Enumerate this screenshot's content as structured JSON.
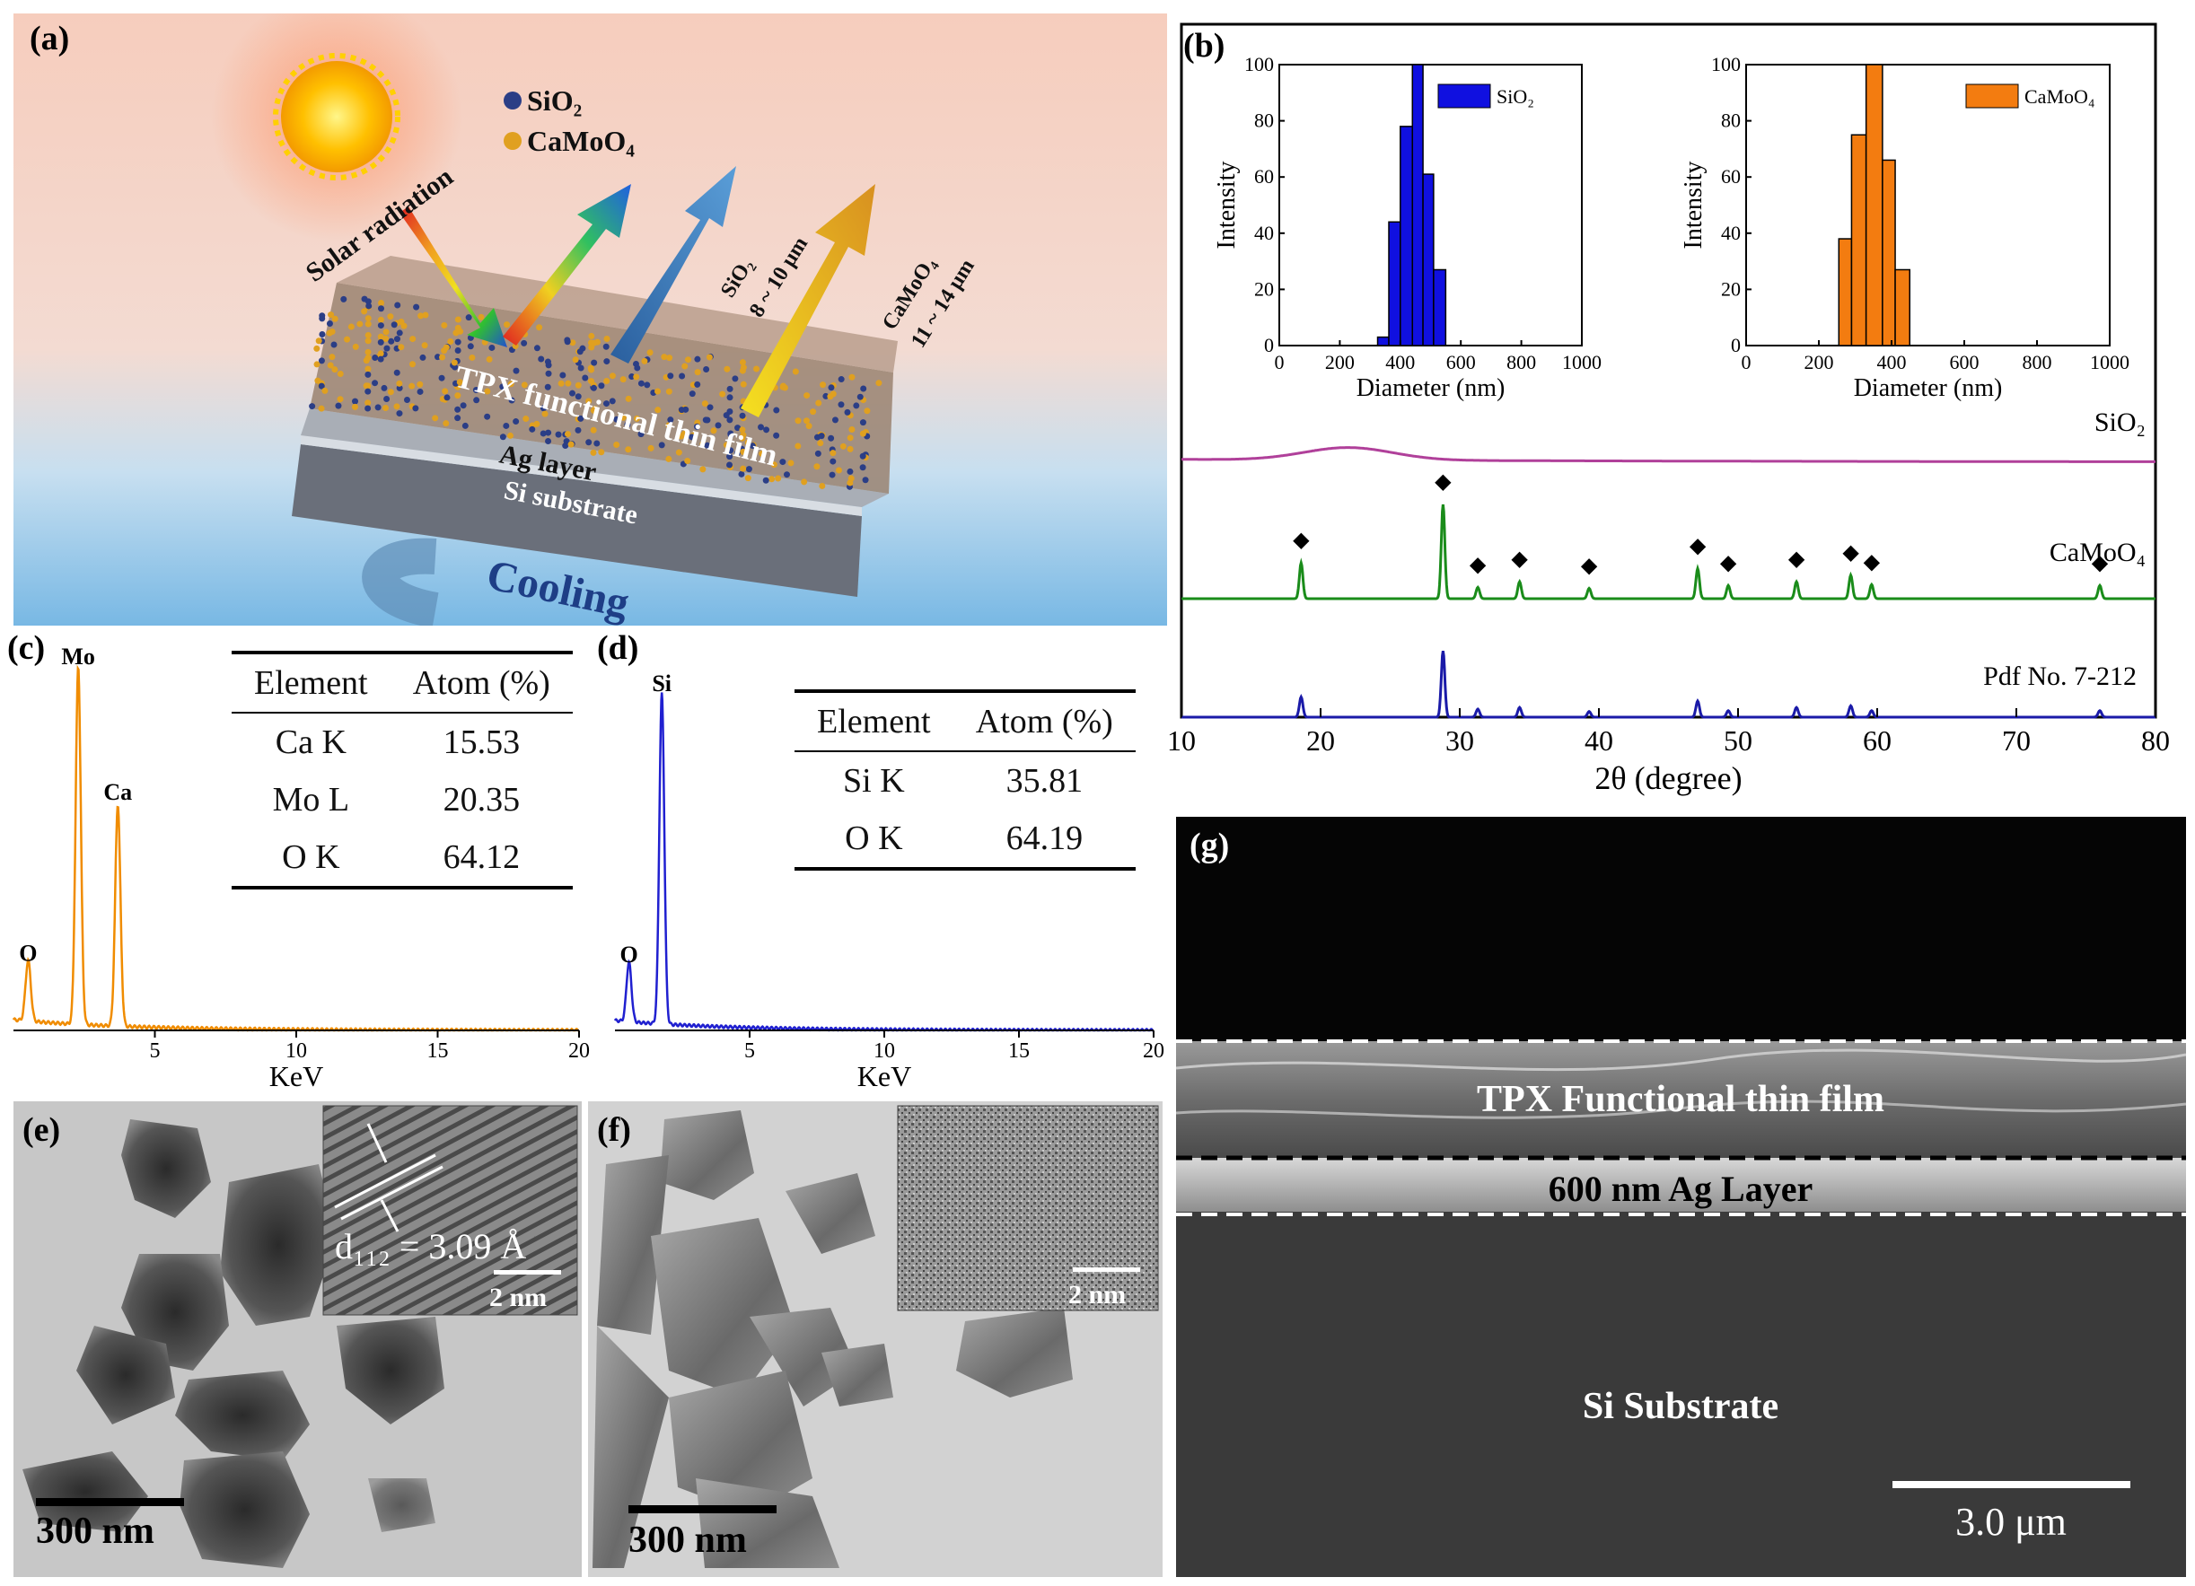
{
  "panels": {
    "a": {
      "label": "(a)",
      "legend": [
        {
          "name": "SiO₂",
          "color": "#2b3e86"
        },
        {
          "name": "CaMoO₄",
          "color": "#e0a020"
        }
      ],
      "solar_label": "Solar radiation",
      "sio2_emission": "SiO₂",
      "sio2_range": "8 ~ 10 μm",
      "camoo4_emission": "CaMoO₄",
      "camoo4_range": "11 ~ 14 μm",
      "film_label": "TPX functional thin film",
      "ag_label": "Ag layer",
      "si_label": "Si substrate",
      "cooling_label": "Cooling"
    },
    "b": {
      "label": "(b)"
    },
    "c": {
      "label": "(c)",
      "peaks": [
        "Mo",
        "Ca",
        "O"
      ],
      "table": {
        "headers": [
          "Element",
          "Atom (%)"
        ],
        "rows": [
          [
            "Ca K",
            "15.53"
          ],
          [
            "Mo L",
            "20.35"
          ],
          [
            "O K",
            "64.12"
          ]
        ]
      }
    },
    "d": {
      "label": "(d)",
      "peaks": [
        "Si",
        "O"
      ],
      "table": {
        "headers": [
          "Element",
          "Atom (%)"
        ],
        "rows": [
          [
            "Si K",
            "35.81"
          ],
          [
            "O K",
            "64.19"
          ]
        ]
      }
    },
    "e": {
      "label": "(e)",
      "scale_bar": "300 nm",
      "inset_scale": "2 nm",
      "lattice": "d₁₁₂ = 3.09 Å"
    },
    "f": {
      "label": "(f)",
      "scale_bar": "300 nm",
      "inset_scale": "2 nm"
    },
    "g": {
      "label": "(g)",
      "film": "TPX Functional thin film",
      "ag": "600 nm Ag Layer",
      "si": "Si Substrate",
      "scale_bar": "3.0 μm"
    }
  },
  "chart_data": [
    {
      "id": "b-inset-sio2",
      "type": "bar",
      "title": "",
      "legend": "SiO₂",
      "color": "#1010e0",
      "xlabel": "Diameter (nm)",
      "ylabel": "Intensity",
      "xlim": [
        0,
        1000
      ],
      "ylim": [
        0,
        100
      ],
      "xticks": [
        "0",
        "200",
        "400",
        "600",
        "800",
        "1000"
      ],
      "yticks": [
        "0",
        "20",
        "40",
        "60",
        "80",
        "100"
      ],
      "bins": [
        {
          "x0": 325,
          "x1": 362,
          "y": 3
        },
        {
          "x0": 362,
          "x1": 400,
          "y": 44
        },
        {
          "x0": 400,
          "x1": 440,
          "y": 78
        },
        {
          "x0": 440,
          "x1": 475,
          "y": 100
        },
        {
          "x0": 475,
          "x1": 510,
          "y": 61
        },
        {
          "x0": 510,
          "x1": 550,
          "y": 27
        }
      ]
    },
    {
      "id": "b-inset-camoo4",
      "type": "bar",
      "title": "",
      "legend": "CaMoO₄",
      "color": "#f37c10",
      "xlabel": "Diameter (nm)",
      "ylabel": "Intensity",
      "xlim": [
        0,
        1000
      ],
      "ylim": [
        0,
        100
      ],
      "xticks": [
        "0",
        "200",
        "400",
        "600",
        "800",
        "1000"
      ],
      "yticks": [
        "0",
        "20",
        "40",
        "60",
        "80",
        "100"
      ],
      "bins": [
        {
          "x0": 255,
          "x1": 290,
          "y": 38
        },
        {
          "x0": 290,
          "x1": 330,
          "y": 75
        },
        {
          "x0": 330,
          "x1": 375,
          "y": 100
        },
        {
          "x0": 375,
          "x1": 410,
          "y": 66
        },
        {
          "x0": 410,
          "x1": 450,
          "y": 27
        }
      ]
    },
    {
      "id": "b-xrd",
      "type": "line",
      "xlabel": "2θ (degree)",
      "ylabel": "",
      "xlim": [
        10,
        80
      ],
      "xticks": [
        "10",
        "20",
        "30",
        "40",
        "50",
        "60",
        "70",
        "80"
      ],
      "series": [
        {
          "name": "SiO₂",
          "color": "#b0409a",
          "kind": "amorphous",
          "hump_center": 22,
          "hump_width": 4.5,
          "relative_height": 0.35
        },
        {
          "name": "CaMoO₄",
          "color": "#1a8c1a",
          "peaks": [
            [
              18.6,
              0.38
            ],
            [
              28.8,
              1.0
            ],
            [
              31.3,
              0.12
            ],
            [
              34.3,
              0.18
            ],
            [
              39.3,
              0.11
            ],
            [
              47.1,
              0.32
            ],
            [
              49.3,
              0.14
            ],
            [
              54.2,
              0.18
            ],
            [
              58.1,
              0.25
            ],
            [
              59.6,
              0.15
            ],
            [
              76.0,
              0.14
            ]
          ],
          "marked_peaks": [
            18.6,
            28.8,
            31.3,
            34.3,
            39.3,
            47.1,
            49.3,
            54.2,
            58.1,
            59.6,
            76.0
          ]
        },
        {
          "name": "Pdf No. 7-212",
          "color": "#1a1aa8",
          "peaks": [
            [
              18.6,
              0.25
            ],
            [
              28.8,
              0.82
            ],
            [
              31.3,
              0.1
            ],
            [
              34.3,
              0.12
            ],
            [
              39.3,
              0.07
            ],
            [
              47.1,
              0.2
            ],
            [
              49.3,
              0.08
            ],
            [
              54.2,
              0.12
            ],
            [
              58.1,
              0.14
            ],
            [
              59.6,
              0.08
            ],
            [
              76.0,
              0.08
            ]
          ]
        }
      ]
    },
    {
      "id": "c-eds",
      "type": "line",
      "xlabel": "KeV",
      "color": "#f08c00",
      "xlim": [
        0,
        20
      ],
      "xticks": [
        "5",
        "10",
        "15",
        "20"
      ],
      "peaks": [
        [
          0.52,
          0.17
        ],
        [
          2.29,
          1.0
        ],
        [
          3.69,
          0.62
        ]
      ],
      "peak_labels": [
        {
          "x": 2.29,
          "text": "Mo"
        },
        {
          "x": 3.69,
          "text": "Ca"
        },
        {
          "x": 0.52,
          "text": "O"
        }
      ]
    },
    {
      "id": "d-eds",
      "type": "line",
      "xlabel": "KeV",
      "color": "#2020d0",
      "xlim": [
        0,
        20
      ],
      "xticks": [
        "5",
        "10",
        "15",
        "20"
      ],
      "peaks": [
        [
          0.52,
          0.18
        ],
        [
          1.74,
          1.0
        ]
      ],
      "peak_labels": [
        {
          "x": 1.74,
          "text": "Si"
        },
        {
          "x": 0.52,
          "text": "O"
        }
      ]
    }
  ]
}
